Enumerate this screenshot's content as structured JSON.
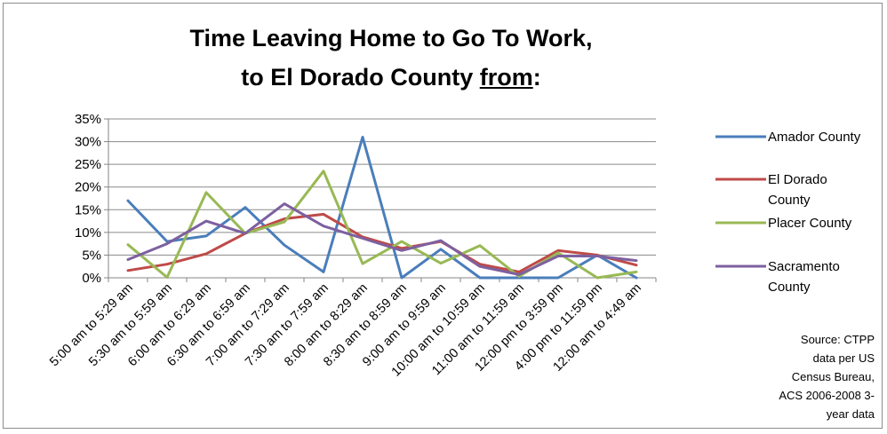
{
  "chart_data": {
    "type": "line",
    "title_line1": "Time Leaving Home to Go To Work,",
    "title_line2_prefix": "to El Dorado County ",
    "title_line2_underlined": "from",
    "title_line2_suffix": ":",
    "categories": [
      "5:00 am to 5:29 am",
      "5:30 am to 5:59 am",
      "6:00 am to 6:29 am",
      "6:30 am to 6:59 am",
      "7:00 am to 7:29 am",
      "7:30 am to 7:59 am",
      "8:00 am to 8:29 am",
      "8:30 am to 8:59 am",
      "9:00 am to 9:59 am",
      "10:00 am to 10:59 am",
      "11:00 am to 11:59 am",
      "12:00 pm to 3:59 pm",
      "4:00 pm to 11:59 pm",
      "12:00 am to 4:49 am"
    ],
    "ylim": [
      0,
      35
    ],
    "yticks": [
      "0%",
      "5%",
      "10%",
      "15%",
      "20%",
      "25%",
      "30%",
      "35%"
    ],
    "ytick_values": [
      0,
      5,
      10,
      15,
      20,
      25,
      30,
      35
    ],
    "grid": true,
    "legend_position": "right",
    "series": [
      {
        "name": "Amador County",
        "label_lines": [
          "Amador County"
        ],
        "color": "#4a7ebb",
        "values": [
          17,
          8,
          9.2,
          15.5,
          7.2,
          1.3,
          31,
          0,
          6.3,
          0,
          0,
          0,
          5,
          0
        ]
      },
      {
        "name": "El Dorado County",
        "label_lines": [
          "El Dorado",
          "County"
        ],
        "color": "#be4b48",
        "values": [
          1.6,
          3,
          5.3,
          9.8,
          13,
          14,
          9,
          6.5,
          8,
          3,
          1.3,
          6,
          5,
          2.8
        ]
      },
      {
        "name": "Placer County",
        "label_lines": [
          "Placer County"
        ],
        "color": "#98b954",
        "values": [
          7.3,
          0.1,
          18.8,
          9.8,
          12.3,
          23.5,
          3.1,
          8,
          3.2,
          7.1,
          0.3,
          5.5,
          0,
          1.3
        ]
      },
      {
        "name": "Sacramento County",
        "label_lines": [
          "Sacramento",
          "County"
        ],
        "color": "#7d60a0",
        "values": [
          4,
          7.5,
          12.5,
          9.8,
          16.3,
          11.4,
          8.7,
          6,
          8.2,
          2.5,
          0.7,
          4.8,
          4.8,
          3.8
        ]
      }
    ],
    "source_lines": [
      "Source:  CTPP",
      "data per US",
      "Census Bureau,",
      "ACS 2006-2008 3-",
      "year data"
    ]
  }
}
